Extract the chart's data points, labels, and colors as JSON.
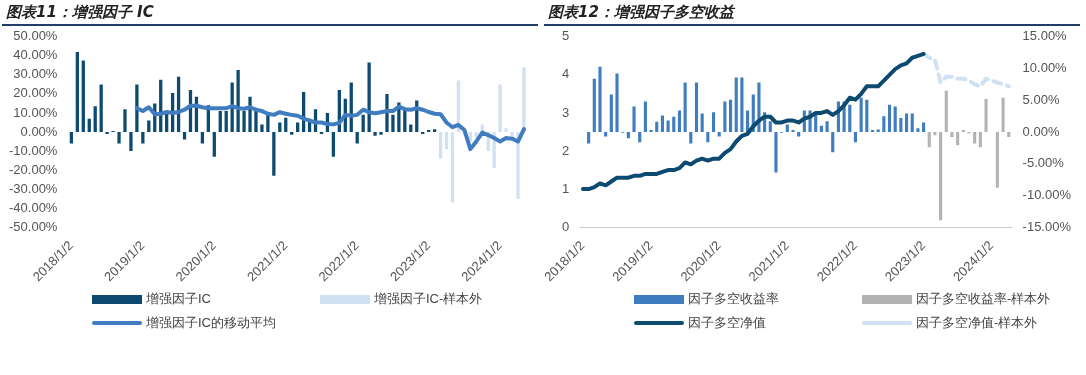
{
  "chart_data": [
    {
      "type": "bar",
      "title": "图表11：增强因子 IC",
      "legend": "bottom",
      "categories": [
        "2018/1/2",
        null,
        null,
        null,
        null,
        null,
        null,
        null,
        null,
        null,
        null,
        null,
        "2019/1/2",
        null,
        null,
        null,
        null,
        null,
        null,
        null,
        null,
        null,
        null,
        null,
        "2020/1/2",
        null,
        null,
        null,
        null,
        null,
        null,
        null,
        null,
        null,
        null,
        null,
        "2021/1/2",
        null,
        null,
        null,
        null,
        null,
        null,
        null,
        null,
        null,
        null,
        null,
        "2022/1/2",
        null,
        null,
        null,
        null,
        null,
        null,
        null,
        null,
        null,
        null,
        null,
        "2023/1/2",
        null,
        null,
        null,
        null,
        null,
        null,
        null,
        null,
        null,
        null,
        null,
        "2024/1/2",
        null,
        null,
        null,
        null
      ],
      "ylim": [
        -50,
        50
      ],
      "yticks": [
        {
          "value": -50,
          "label": "-50.00%"
        },
        {
          "value": -40,
          "label": "-40.00%"
        },
        {
          "value": -30,
          "label": "-30.00%"
        },
        {
          "value": -20,
          "label": "-20.00%"
        },
        {
          "value": -10,
          "label": "-10.00%"
        },
        {
          "value": 0,
          "label": "0.00%"
        },
        {
          "value": 10,
          "label": "10.00%"
        },
        {
          "value": 20,
          "label": "20.00%"
        },
        {
          "value": 30,
          "label": "30.00%"
        },
        {
          "value": 40,
          "label": "40.00%"
        },
        {
          "value": 50,
          "label": "50.00%"
        }
      ],
      "series": [
        {
          "name": "增强因子IC",
          "color": "#0d4a70",
          "values": [
            -6,
            42,
            37.5,
            7,
            13.5,
            25,
            -1,
            0.5,
            -6,
            12,
            -10,
            25,
            -6,
            6,
            15,
            27.5,
            11,
            20.5,
            29,
            -4,
            22,
            18.5,
            -6,
            14,
            -13,
            11,
            11,
            26,
            32.5,
            11,
            18.5,
            11,
            4,
            10,
            -23,
            5,
            7.5,
            -1.5,
            5,
            21,
            7,
            12,
            -1,
            10,
            -13,
            22,
            17.5,
            26,
            -6,
            9,
            36.5,
            -2,
            -1.5,
            20,
            9,
            15.5,
            12,
            4,
            16.5,
            -1,
            1,
            1.5,
            null,
            null,
            null,
            null,
            null,
            null,
            null,
            null,
            null,
            null,
            null,
            null,
            null,
            null,
            null
          ]
        },
        {
          "name": "增强因子IC-样本外",
          "color": "#cfe1f2",
          "values": [
            null,
            null,
            null,
            null,
            null,
            null,
            null,
            null,
            null,
            null,
            null,
            null,
            null,
            null,
            null,
            null,
            null,
            null,
            null,
            null,
            null,
            null,
            null,
            null,
            null,
            null,
            null,
            null,
            null,
            null,
            null,
            null,
            null,
            null,
            null,
            null,
            null,
            null,
            null,
            null,
            null,
            null,
            null,
            null,
            null,
            null,
            null,
            null,
            null,
            null,
            null,
            null,
            null,
            null,
            null,
            null,
            null,
            null,
            null,
            null,
            null,
            null,
            -14,
            -9,
            -37,
            27,
            null,
            -5,
            -3,
            4,
            -10,
            -19,
            25,
            2,
            -4,
            -35,
            34
          ]
        },
        {
          "name": "增强因子IC的移动平均",
          "type": "line",
          "color": "#3f7cc0",
          "values": [
            null,
            null,
            null,
            null,
            null,
            null,
            null,
            null,
            null,
            null,
            null,
            12.5,
            11,
            13,
            9.3,
            9.6,
            10.5,
            10,
            10.5,
            11.7,
            13.8,
            13.8,
            13,
            12.5,
            12.5,
            12.5,
            12.5,
            13.6,
            12.5,
            12.2,
            13,
            11.7,
            11,
            9.6,
            9,
            10.4,
            9.6,
            9,
            8.5,
            7,
            6,
            5,
            5,
            4.2,
            4,
            4.8,
            9,
            8.5,
            9,
            11.7,
            10.4,
            9.8,
            10.4,
            11,
            11,
            13.3,
            12,
            11.7,
            12.5,
            11.7,
            10.5,
            9.6,
            9.3,
            5,
            2.5,
            3.7,
            1,
            -9,
            -5,
            -0.3,
            -1.6,
            -3.2,
            -5,
            -3.2,
            -3.5,
            -5,
            1.5
          ]
        }
      ]
    },
    {
      "type": "bar",
      "title": "图表12：增强因子多空收益",
      "legend": "bottom",
      "categories": [
        "2018/1/2",
        null,
        null,
        null,
        null,
        null,
        null,
        null,
        null,
        null,
        null,
        null,
        "2019/1/2",
        null,
        null,
        null,
        null,
        null,
        null,
        null,
        null,
        null,
        null,
        null,
        "2020/1/2",
        null,
        null,
        null,
        null,
        null,
        null,
        null,
        null,
        null,
        null,
        null,
        "2021/1/2",
        null,
        null,
        null,
        null,
        null,
        null,
        null,
        null,
        null,
        null,
        null,
        "2022/1/2",
        null,
        null,
        null,
        null,
        null,
        null,
        null,
        null,
        null,
        null,
        null,
        "2023/1/2",
        null,
        null,
        null,
        null,
        null,
        null,
        null,
        null,
        null,
        null,
        null,
        "2024/1/2",
        null,
        null,
        null
      ],
      "ylim": [
        0,
        5
      ],
      "yticks": [
        0,
        1,
        2,
        3,
        4,
        5
      ],
      "y2lim": [
        -15,
        15
      ],
      "y2ticks": [
        {
          "value": -15,
          "label": "-15.00%"
        },
        {
          "value": -10,
          "label": "-10.00%"
        },
        {
          "value": -5,
          "label": "-5.00%"
        },
        {
          "value": 0,
          "label": "0.00%"
        },
        {
          "value": 5,
          "label": "5.00%"
        },
        {
          "value": 10,
          "label": "10.00%"
        },
        {
          "value": 15,
          "label": "15.00%"
        }
      ],
      "series": [
        {
          "name": "因子多空收益率",
          "axis": "y2",
          "color": "#3f7cc0",
          "values": [
            null,
            -1.8,
            8.4,
            10.3,
            -0.7,
            5.9,
            9.2,
            -0.1,
            -1,
            4,
            -1.6,
            4.8,
            0.3,
            1.6,
            2.6,
            1.8,
            2.4,
            3.4,
            7.8,
            -1.8,
            7.8,
            2.9,
            -1.6,
            3.1,
            -0.7,
            4.8,
            5.1,
            8.6,
            8.6,
            3.4,
            5.9,
            7.8,
            3.1,
            1.7,
            -6.4,
            -0.1,
            1.2,
            0.3,
            -0.7,
            3.4,
            3.4,
            2.9,
            1,
            1.7,
            -3.2,
            4.8,
            4.8,
            4.3,
            -1.6,
            5.4,
            5.1,
            0.3,
            0.4,
            2.5,
            4.3,
            4,
            2.2,
            2.9,
            2.9,
            0.6,
            1.5,
            null,
            null,
            null,
            null,
            null,
            null,
            null,
            null,
            null,
            null,
            null,
            null,
            null,
            null,
            null
          ]
        },
        {
          "name": "因子多空收益率-样本外",
          "axis": "y2",
          "color": "#b3b3b3",
          "values": [
            null,
            null,
            null,
            null,
            null,
            null,
            null,
            null,
            null,
            null,
            null,
            null,
            null,
            null,
            null,
            null,
            null,
            null,
            null,
            null,
            null,
            null,
            null,
            null,
            null,
            null,
            null,
            null,
            null,
            null,
            null,
            null,
            null,
            null,
            null,
            null,
            null,
            null,
            null,
            null,
            null,
            null,
            null,
            null,
            null,
            null,
            null,
            null,
            null,
            null,
            null,
            null,
            null,
            null,
            null,
            null,
            null,
            null,
            null,
            null,
            null,
            -2.4,
            -0.5,
            -13.9,
            6.5,
            -0.8,
            -2.1,
            0.3,
            -0.2,
            -1.8,
            -2.4,
            5.2,
            null,
            -8.8,
            5.4,
            -0.8
          ]
        },
        {
          "name": "因子多空净值",
          "type": "line",
          "color": "#0d4a70",
          "values": [
            1,
            1,
            1.05,
            1.15,
            1.1,
            1.2,
            1.3,
            1.3,
            1.3,
            1.35,
            1.35,
            1.4,
            1.4,
            1.4,
            1.45,
            1.5,
            1.5,
            1.55,
            1.7,
            1.65,
            1.75,
            1.8,
            1.75,
            1.8,
            1.8,
            1.95,
            2.05,
            2.25,
            2.4,
            2.45,
            2.65,
            2.8,
            2.9,
            2.9,
            2.75,
            2.75,
            2.8,
            2.8,
            2.75,
            2.85,
            2.9,
            3,
            3,
            3.05,
            2.95,
            3.05,
            3.2,
            3.4,
            3.35,
            3.5,
            3.7,
            3.7,
            3.7,
            3.85,
            4,
            4.15,
            4.25,
            4.3,
            4.45,
            4.5,
            4.55,
            null,
            null,
            null,
            null,
            null,
            null,
            null,
            null,
            null,
            null,
            null,
            null,
            null,
            null,
            null
          ]
        },
        {
          "name": "因子多空净值-样本外",
          "type": "line",
          "line_style": "dashed",
          "color": "#cfe1f2",
          "values": [
            null,
            null,
            null,
            null,
            null,
            null,
            null,
            null,
            null,
            null,
            null,
            null,
            null,
            null,
            null,
            null,
            null,
            null,
            null,
            null,
            null,
            null,
            null,
            null,
            null,
            null,
            null,
            null,
            null,
            null,
            null,
            null,
            null,
            null,
            null,
            null,
            null,
            null,
            null,
            null,
            null,
            null,
            null,
            null,
            null,
            null,
            null,
            null,
            null,
            null,
            null,
            null,
            null,
            null,
            null,
            null,
            null,
            null,
            null,
            null,
            4.55,
            4.45,
            4.4,
            3.8,
            3.95,
            3.95,
            3.9,
            3.9,
            3.85,
            3.75,
            3.7,
            3.9,
            3.85,
            3.8,
            3.75,
            3.7
          ]
        }
      ]
    }
  ]
}
